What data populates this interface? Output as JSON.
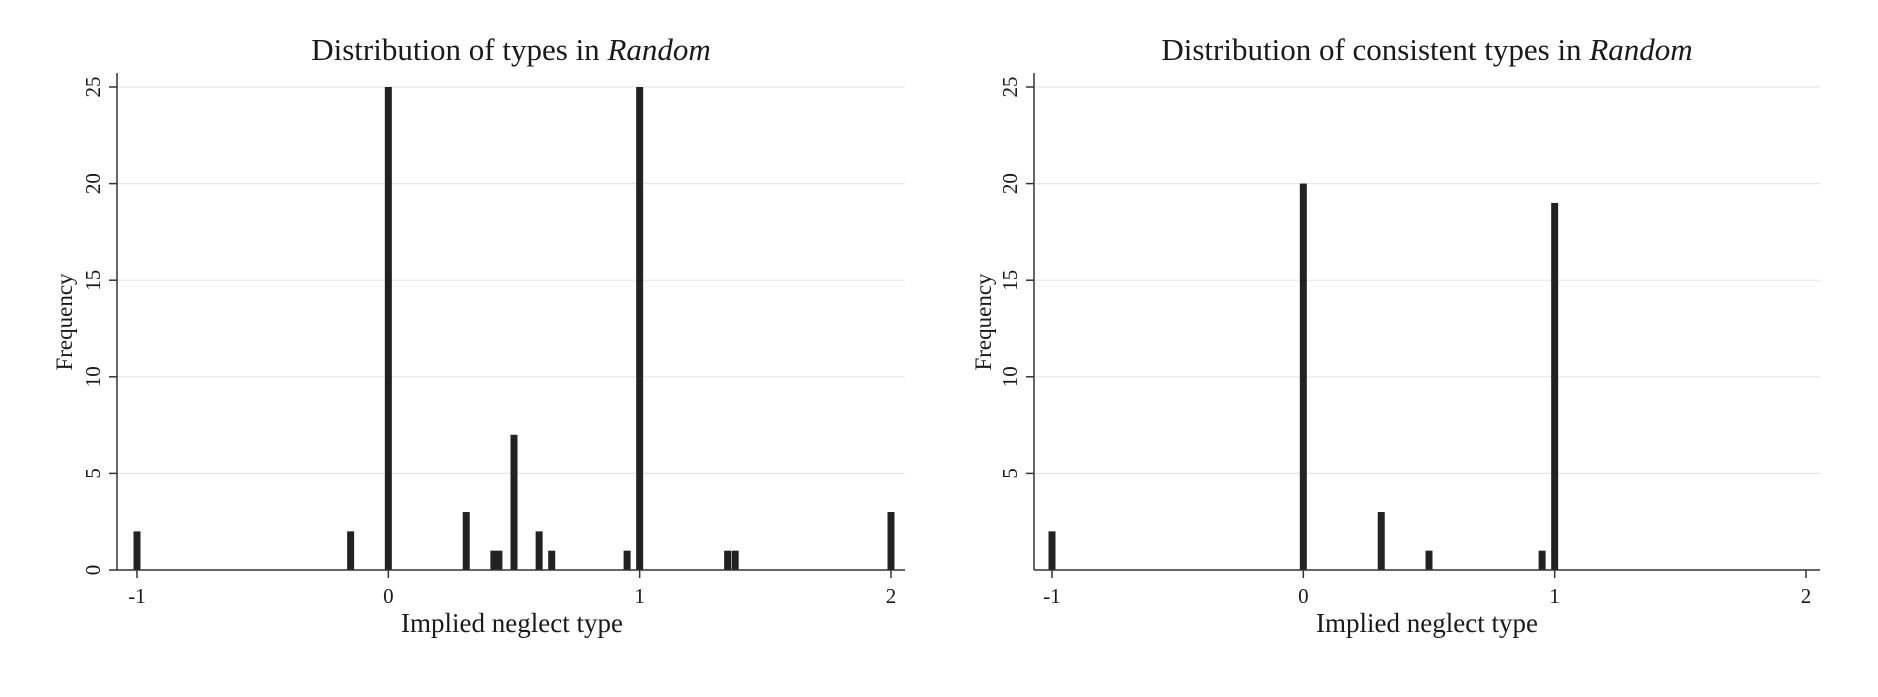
{
  "chart_data": [
    {
      "type": "bar",
      "title": "Distribution of types in ",
      "title_italic": "Random",
      "xlabel": "Implied neglect type",
      "ylabel": "Frequency",
      "xlim": [
        -1,
        2
      ],
      "ylim": [
        0,
        25
      ],
      "xticks": [
        "-1",
        "0",
        "1",
        "2"
      ],
      "yticks": [
        "0",
        "5",
        "10",
        "15",
        "20",
        "25"
      ],
      "grid": true,
      "bar_color": "#222222",
      "x": [
        -1,
        -0.15,
        0,
        0.31,
        0.42,
        0.44,
        0.5,
        0.6,
        0.65,
        0.95,
        1,
        1.35,
        1.38,
        2
      ],
      "values": [
        2,
        2,
        25,
        3,
        1,
        1,
        7,
        2,
        1,
        1,
        25,
        1,
        1,
        3
      ]
    },
    {
      "type": "bar",
      "title": "Distribution of consistent types in ",
      "title_italic": "Random",
      "xlabel": "Implied neglect type",
      "ylabel": "Frequency",
      "xlim": [
        -1,
        2
      ],
      "ylim": [
        0,
        25
      ],
      "xticks": [
        "-1",
        "0",
        "1",
        "2"
      ],
      "yticks": [
        "5",
        "10",
        "15",
        "20",
        "25"
      ],
      "grid": true,
      "bar_color": "#222222",
      "x": [
        -1,
        0,
        0.31,
        0.5,
        0.95,
        1
      ],
      "values": [
        2,
        20,
        3,
        1,
        1,
        19
      ]
    }
  ]
}
